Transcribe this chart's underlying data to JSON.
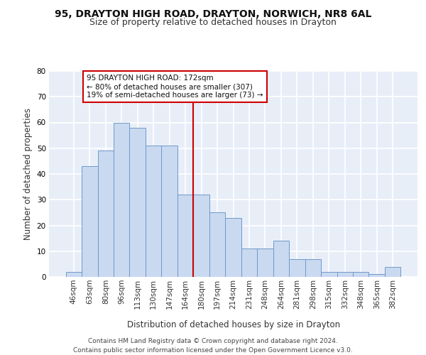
{
  "title1": "95, DRAYTON HIGH ROAD, DRAYTON, NORWICH, NR8 6AL",
  "title2": "Size of property relative to detached houses in Drayton",
  "xlabel": "Distribution of detached houses by size in Drayton",
  "ylabel": "Number of detached properties",
  "categories": [
    "46sqm",
    "63sqm",
    "80sqm",
    "96sqm",
    "113sqm",
    "130sqm",
    "147sqm",
    "164sqm",
    "180sqm",
    "197sqm",
    "214sqm",
    "231sqm",
    "248sqm",
    "264sqm",
    "281sqm",
    "298sqm",
    "315sqm",
    "332sqm",
    "348sqm",
    "365sqm",
    "382sqm"
  ],
  "values": [
    2,
    43,
    49,
    60,
    58,
    51,
    51,
    32,
    32,
    25,
    23,
    11,
    11,
    14,
    7,
    7,
    2,
    2,
    2,
    1,
    4
  ],
  "bar_color": "#c9d9f0",
  "bar_edge_color": "#7099c8",
  "vline_x_idx": 7,
  "vline_color": "#cc0000",
  "annotation_text": "95 DRAYTON HIGH ROAD: 172sqm\n← 80% of detached houses are smaller (307)\n19% of semi-detached houses are larger (73) →",
  "annotation_box_color": "#ffffff",
  "annotation_box_edge": "#cc0000",
  "footer_text": "Contains HM Land Registry data © Crown copyright and database right 2024.\nContains public sector information licensed under the Open Government Licence v3.0.",
  "ylim": [
    0,
    80
  ],
  "yticks": [
    0,
    10,
    20,
    30,
    40,
    50,
    60,
    70,
    80
  ],
  "bg_color": "#e8eef8",
  "grid_color": "#ffffff",
  "title1_fontsize": 10,
  "title2_fontsize": 9,
  "xlabel_fontsize": 8.5,
  "ylabel_fontsize": 8.5,
  "tick_fontsize": 7.5,
  "footer_fontsize": 6.5,
  "ann_fontsize": 7.5
}
